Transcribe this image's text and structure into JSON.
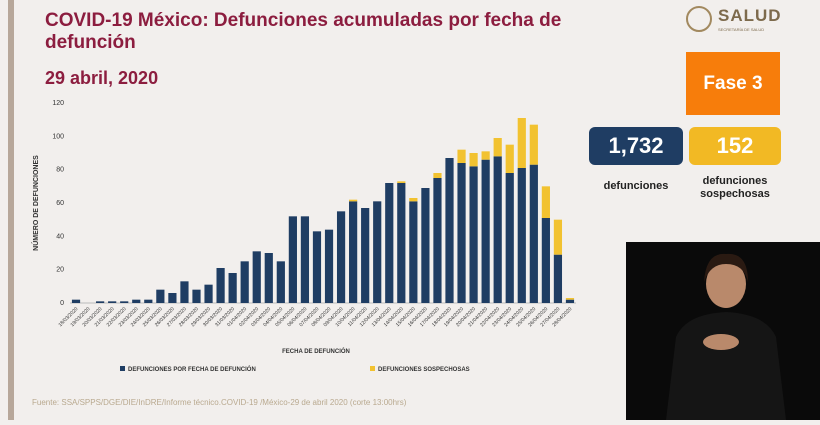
{
  "header": {
    "title": "COVID-19 México: Defunciones acumuladas por fecha de defunción",
    "date": "29 abril, 2020",
    "logo": "SALUD",
    "logo_sub": "SECRETARÍA DE SALUD"
  },
  "stats": {
    "phase": "Fase 3",
    "deaths": "1,732",
    "deaths_label": "defunciones",
    "suspected": "152",
    "suspected_label": "defunciones sospechosas"
  },
  "source": "Fuente: SSA/SPPS/DGE/DIE/InDRE/Informe técnico.COVID-19 /México-29 de abril 2020 (corte 13:00hrs)",
  "chart_data": {
    "type": "bar",
    "stacked": true,
    "x_label": "FECHA DE DEFUNCIÓN",
    "y_label": "NÚMERO DE DEFUNCIONES",
    "categories": [
      "18/03/2020",
      "19/03/2020",
      "20/03/2020",
      "21/03/2020",
      "22/03/2020",
      "23/03/2020",
      "24/03/2020",
      "25/03/2020",
      "26/03/2020",
      "27/03/2020",
      "28/03/2020",
      "29/03/2020",
      "30/03/2020",
      "31/03/2020",
      "01/04/2020",
      "02/04/2020",
      "03/04/2020",
      "04/04/2020",
      "05/04/2020",
      "06/04/2020",
      "07/04/2020",
      "08/04/2020",
      "09/04/2020",
      "10/04/2020",
      "11/04/2020",
      "12/04/2020",
      "13/04/2020",
      "14/04/2020",
      "15/04/2020",
      "16/04/2020",
      "17/04/2020",
      "18/04/2020",
      "19/04/2020",
      "20/04/2020",
      "21/04/2020",
      "22/04/2020",
      "23/04/2020",
      "24/04/2020",
      "25/04/2020",
      "26/04/2020",
      "27/04/2020",
      "28/04/2020"
    ],
    "series": [
      {
        "name": "DEFUNCIONES POR FECHA DE DEFUNCIÓN",
        "color": "#1f3d63",
        "values": [
          2,
          0,
          1,
          1,
          1,
          2,
          2,
          8,
          6,
          13,
          8,
          11,
          21,
          18,
          25,
          31,
          30,
          25,
          52,
          52,
          43,
          44,
          55,
          61,
          57,
          61,
          72,
          72,
          61,
          69,
          75,
          87,
          84,
          82,
          86,
          88,
          78,
          81,
          83,
          51,
          29,
          2
        ]
      },
      {
        "name": "DEFUNCIONES SOSPECHOSAS",
        "color": "#f2c230",
        "values": [
          0,
          0,
          0,
          0,
          0,
          0,
          0,
          0,
          0,
          0,
          0,
          0,
          0,
          0,
          0,
          0,
          0,
          0,
          0,
          0,
          0,
          0,
          0,
          1,
          0,
          0,
          0,
          1,
          2,
          0,
          3,
          0,
          8,
          8,
          5,
          11,
          17,
          30,
          24,
          19,
          21,
          1
        ]
      }
    ],
    "ylim": [
      0,
      120
    ],
    "yticks": [
      0,
      20,
      40,
      60,
      80,
      100,
      120
    ],
    "grid": false
  }
}
